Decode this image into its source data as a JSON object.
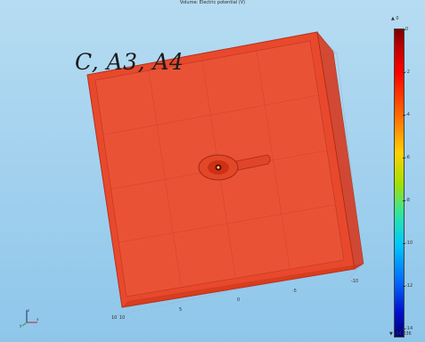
{
  "plot": {
    "title": "Volume: Electric potential (V)",
    "overlay_label": "C, A3, A4",
    "colormap": {
      "high": "#7a0000",
      "mid": "#ffd000",
      "low": "#00007a",
      "slab_color": "#e8492c"
    }
  },
  "colorbar": {
    "max_label": "▲ 0",
    "min_label": "▼ -14.036",
    "ticks": [
      "0",
      "-2",
      "-4",
      "-6",
      "-8",
      "-10",
      "-12",
      "-14"
    ]
  },
  "axis": {
    "ticks": [
      "10",
      "10",
      "5",
      "0",
      "-5",
      "-10"
    ]
  },
  "triad": {
    "x": "x",
    "y": "y",
    "z": "z"
  }
}
